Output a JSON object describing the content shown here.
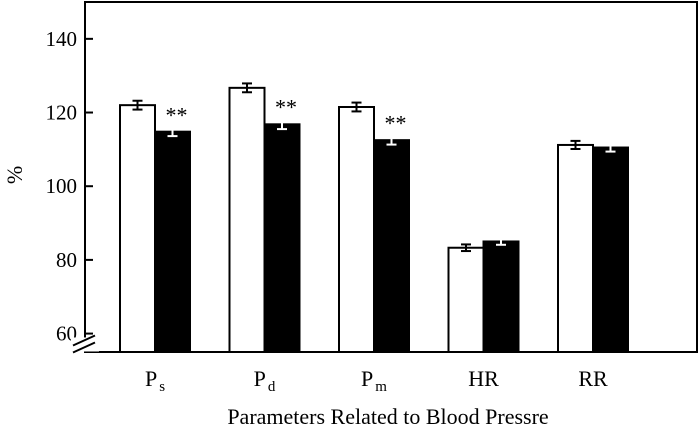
{
  "chart_data": {
    "type": "bar",
    "title": "",
    "xlabel": "Parameters Related to Blood Pressre",
    "ylabel": "%",
    "ylim": [
      55,
      150
    ],
    "yticks": [
      60,
      80,
      100,
      120,
      140
    ],
    "axis_break": true,
    "grid": false,
    "legend": "none",
    "categories": [
      {
        "main": "P",
        "sub": "s"
      },
      {
        "main": "P",
        "sub": "d"
      },
      {
        "main": "P",
        "sub": "m"
      },
      {
        "main": "HR",
        "sub": ""
      },
      {
        "main": "RR",
        "sub": ""
      }
    ],
    "series": [
      {
        "fill": "#ffffff",
        "values": [
          122,
          126.7,
          121.5,
          83.3,
          111.2
        ],
        "errors": [
          1.2,
          1.2,
          1.2,
          0.9,
          1.1
        ]
      },
      {
        "fill": "#000000",
        "values": [
          114.8,
          116.8,
          112.5,
          85.0,
          110.5
        ],
        "errors": [
          1.2,
          1.3,
          1.2,
          0.9,
          1.1
        ]
      }
    ],
    "annotations": [
      {
        "category": 0,
        "series": 1,
        "text": "**"
      },
      {
        "category": 1,
        "series": 1,
        "text": "**"
      },
      {
        "category": 2,
        "series": 1,
        "text": "**"
      }
    ]
  }
}
